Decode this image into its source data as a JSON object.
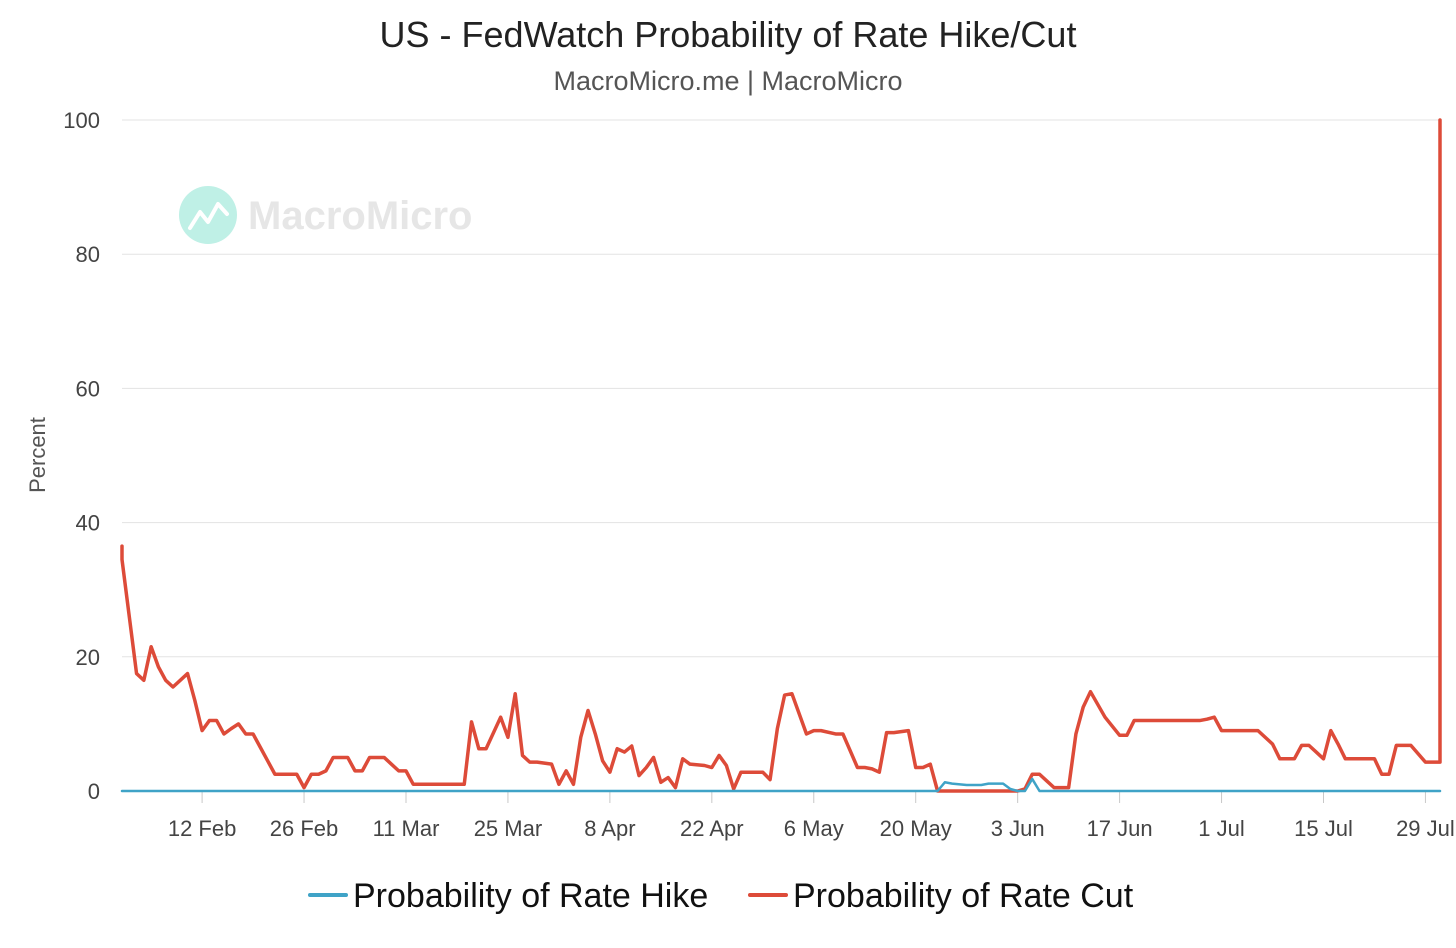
{
  "chart_data": {
    "type": "line",
    "title": "US - FedWatch Probability of Rate Hike/Cut",
    "subtitle": "MacroMicro.me | MacroMicro",
    "ylabel": "Percent",
    "xlabel": "",
    "ylim": [
      0,
      100
    ],
    "yticks": [
      0,
      20,
      40,
      60,
      80,
      100
    ],
    "xlim": [
      "2024-02-01",
      "2024-07-31"
    ],
    "xticks": [
      {
        "date": "2024-02-12",
        "label": "12 Feb"
      },
      {
        "date": "2024-02-26",
        "label": "26 Feb"
      },
      {
        "date": "2024-03-11",
        "label": "11 Mar"
      },
      {
        "date": "2024-03-25",
        "label": "25 Mar"
      },
      {
        "date": "2024-04-08",
        "label": "8 Apr"
      },
      {
        "date": "2024-04-22",
        "label": "22 Apr"
      },
      {
        "date": "2024-05-06",
        "label": "6 May"
      },
      {
        "date": "2024-05-20",
        "label": "20 May"
      },
      {
        "date": "2024-06-03",
        "label": "3 Jun"
      },
      {
        "date": "2024-06-17",
        "label": "17 Jun"
      },
      {
        "date": "2024-07-01",
        "label": "1 Jul"
      },
      {
        "date": "2024-07-15",
        "label": "15 Jul"
      },
      {
        "date": "2024-07-29",
        "label": "29 Jul"
      }
    ],
    "grid": true,
    "legend_position": "bottom-center",
    "series": [
      {
        "name": "Probability of Rate Hike",
        "color": "#3fa3c7",
        "points": [
          [
            "2024-02-01",
            0
          ],
          [
            "2024-05-23",
            0
          ],
          [
            "2024-05-24",
            1.3
          ],
          [
            "2024-05-25",
            1.1
          ],
          [
            "2024-05-27",
            0.9
          ],
          [
            "2024-05-29",
            0.9
          ],
          [
            "2024-05-30",
            1.1
          ],
          [
            "2024-06-01",
            1.1
          ],
          [
            "2024-06-02",
            0.3
          ],
          [
            "2024-06-03",
            0
          ],
          [
            "2024-06-04",
            0
          ],
          [
            "2024-06-05",
            1.8
          ],
          [
            "2024-06-06",
            0
          ],
          [
            "2024-07-31",
            0
          ]
        ]
      },
      {
        "name": "Probability of Rate Cut",
        "color": "#dd4b39",
        "points": [
          [
            "2024-02-01",
            36.5
          ],
          [
            "2024-02-01",
            34.5
          ],
          [
            "2024-02-02",
            26
          ],
          [
            "2024-02-03",
            17.5
          ],
          [
            "2024-02-04",
            16.5
          ],
          [
            "2024-02-05",
            21.5
          ],
          [
            "2024-02-06",
            18.5
          ],
          [
            "2024-02-07",
            16.5
          ],
          [
            "2024-02-08",
            15.5
          ],
          [
            "2024-02-09",
            16.5
          ],
          [
            "2024-02-10",
            17.5
          ],
          [
            "2024-02-11",
            13.5
          ],
          [
            "2024-02-12",
            9
          ],
          [
            "2024-02-13",
            10.5
          ],
          [
            "2024-02-14",
            10.5
          ],
          [
            "2024-02-15",
            8.5
          ],
          [
            "2024-02-16",
            9.3
          ],
          [
            "2024-02-17",
            10
          ],
          [
            "2024-02-18",
            8.5
          ],
          [
            "2024-02-19",
            8.5
          ],
          [
            "2024-02-20",
            6.5
          ],
          [
            "2024-02-21",
            4.5
          ],
          [
            "2024-02-22",
            2.5
          ],
          [
            "2024-02-23",
            2.5
          ],
          [
            "2024-02-25",
            2.5
          ],
          [
            "2024-02-26",
            0.5
          ],
          [
            "2024-02-27",
            2.5
          ],
          [
            "2024-02-28",
            2.5
          ],
          [
            "2024-02-29",
            3
          ],
          [
            "2024-03-01",
            5
          ],
          [
            "2024-03-03",
            5
          ],
          [
            "2024-03-04",
            3
          ],
          [
            "2024-03-05",
            3
          ],
          [
            "2024-03-06",
            5
          ],
          [
            "2024-03-07",
            5
          ],
          [
            "2024-03-08",
            5
          ],
          [
            "2024-03-09",
            4
          ],
          [
            "2024-03-10",
            3
          ],
          [
            "2024-03-11",
            3
          ],
          [
            "2024-03-12",
            1
          ],
          [
            "2024-03-19",
            1
          ],
          [
            "2024-03-20",
            10.3
          ],
          [
            "2024-03-21",
            6.3
          ],
          [
            "2024-03-22",
            6.3
          ],
          [
            "2024-03-24",
            11
          ],
          [
            "2024-03-25",
            8
          ],
          [
            "2024-03-26",
            14.5
          ],
          [
            "2024-03-27",
            5.3
          ],
          [
            "2024-03-28",
            4.3
          ],
          [
            "2024-03-29",
            4.3
          ],
          [
            "2024-03-31",
            4
          ],
          [
            "2024-04-01",
            1
          ],
          [
            "2024-04-02",
            3
          ],
          [
            "2024-04-03",
            1
          ],
          [
            "2024-04-04",
            8
          ],
          [
            "2024-04-05",
            12
          ],
          [
            "2024-04-06",
            8.5
          ],
          [
            "2024-04-07",
            4.5
          ],
          [
            "2024-04-08",
            2.8
          ],
          [
            "2024-04-09",
            6.3
          ],
          [
            "2024-04-10",
            5.8
          ],
          [
            "2024-04-11",
            6.7
          ],
          [
            "2024-04-12",
            2.3
          ],
          [
            "2024-04-13",
            3.5
          ],
          [
            "2024-04-14",
            5
          ],
          [
            "2024-04-15",
            1.3
          ],
          [
            "2024-04-16",
            2
          ],
          [
            "2024-04-17",
            0.5
          ],
          [
            "2024-04-18",
            4.8
          ],
          [
            "2024-04-19",
            4
          ],
          [
            "2024-04-21",
            3.8
          ],
          [
            "2024-04-22",
            3.5
          ],
          [
            "2024-04-23",
            5.3
          ],
          [
            "2024-04-24",
            3.8
          ],
          [
            "2024-04-25",
            0.3
          ],
          [
            "2024-04-26",
            2.8
          ],
          [
            "2024-04-29",
            2.8
          ],
          [
            "2024-04-30",
            1.7
          ],
          [
            "2024-05-01",
            9.3
          ],
          [
            "2024-05-02",
            14.3
          ],
          [
            "2024-05-03",
            14.5
          ],
          [
            "2024-05-04",
            11.5
          ],
          [
            "2024-05-05",
            8.5
          ],
          [
            "2024-05-06",
            9
          ],
          [
            "2024-05-07",
            9
          ],
          [
            "2024-05-09",
            8.5
          ],
          [
            "2024-05-10",
            8.5
          ],
          [
            "2024-05-11",
            6
          ],
          [
            "2024-05-12",
            3.5
          ],
          [
            "2024-05-13",
            3.5
          ],
          [
            "2024-05-14",
            3.3
          ],
          [
            "2024-05-15",
            2.8
          ],
          [
            "2024-05-16",
            8.7
          ],
          [
            "2024-05-17",
            8.7
          ],
          [
            "2024-05-19",
            9
          ],
          [
            "2024-05-20",
            3.5
          ],
          [
            "2024-05-21",
            3.5
          ],
          [
            "2024-05-22",
            4
          ],
          [
            "2024-05-23",
            0
          ],
          [
            "2024-06-03",
            0
          ],
          [
            "2024-06-04",
            0.3
          ],
          [
            "2024-06-05",
            2.5
          ],
          [
            "2024-06-06",
            2.5
          ],
          [
            "2024-06-07",
            1.5
          ],
          [
            "2024-06-08",
            0.5
          ],
          [
            "2024-06-10",
            0.5
          ],
          [
            "2024-06-11",
            8.5
          ],
          [
            "2024-06-12",
            12.5
          ],
          [
            "2024-06-13",
            14.8
          ],
          [
            "2024-06-15",
            11
          ],
          [
            "2024-06-17",
            8.3
          ],
          [
            "2024-06-18",
            8.3
          ],
          [
            "2024-06-19",
            10.5
          ],
          [
            "2024-06-28",
            10.5
          ],
          [
            "2024-06-29",
            10.7
          ],
          [
            "2024-06-30",
            11
          ],
          [
            "2024-07-01",
            9
          ],
          [
            "2024-07-06",
            9
          ],
          [
            "2024-07-08",
            7
          ],
          [
            "2024-07-09",
            4.8
          ],
          [
            "2024-07-10",
            4.8
          ],
          [
            "2024-07-11",
            4.8
          ],
          [
            "2024-07-12",
            6.8
          ],
          [
            "2024-07-13",
            6.8
          ],
          [
            "2024-07-14",
            5.8
          ],
          [
            "2024-07-15",
            4.8
          ],
          [
            "2024-07-16",
            9
          ],
          [
            "2024-07-17",
            7
          ],
          [
            "2024-07-18",
            4.8
          ],
          [
            "2024-07-22",
            4.8
          ],
          [
            "2024-07-23",
            2.5
          ],
          [
            "2024-07-24",
            2.5
          ],
          [
            "2024-07-25",
            6.8
          ],
          [
            "2024-07-27",
            6.8
          ],
          [
            "2024-07-29",
            4.3
          ],
          [
            "2024-07-30",
            4.3
          ],
          [
            "2024-07-31",
            4.3
          ],
          [
            "2024-07-31",
            100
          ]
        ]
      }
    ]
  },
  "watermark": {
    "text": "MacroMicro",
    "icon": "chart-line-icon"
  }
}
